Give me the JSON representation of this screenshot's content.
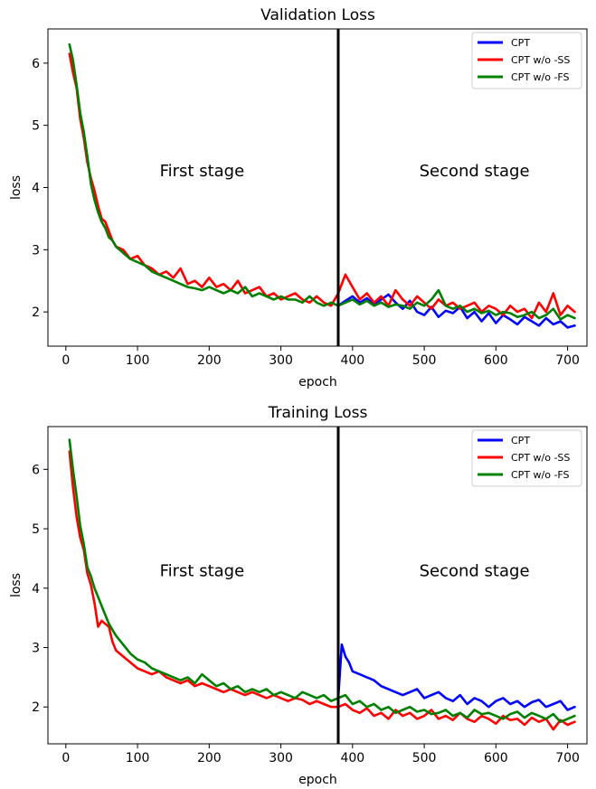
{
  "chart_data": [
    {
      "type": "line",
      "title": "Validation Loss",
      "xlabel": "epoch",
      "ylabel": "loss",
      "xlim": [
        -25,
        727
      ],
      "ylim": [
        1.45,
        6.55
      ],
      "xticks": [
        0,
        100,
        200,
        300,
        400,
        500,
        600,
        700
      ],
      "yticks": [
        2,
        3,
        4,
        5,
        6
      ],
      "grid": false,
      "legend_position": "top-right",
      "vline": 380,
      "annotations": [
        {
          "text": "First stage",
          "x": 190,
          "y": 4.18
        },
        {
          "text": "Second stage",
          "x": 570,
          "y": 4.18
        }
      ],
      "series": [
        {
          "name": "CPT",
          "color": "#0000ff",
          "x": [
            380,
            390,
            400,
            410,
            420,
            430,
            440,
            450,
            460,
            470,
            480,
            490,
            500,
            510,
            520,
            530,
            540,
            550,
            560,
            570,
            580,
            590,
            600,
            610,
            620,
            630,
            640,
            650,
            660,
            670,
            680,
            690,
            700,
            710
          ],
          "y": [
            2.1,
            2.18,
            2.25,
            2.15,
            2.22,
            2.12,
            2.2,
            2.28,
            2.15,
            2.05,
            2.18,
            2.0,
            1.95,
            2.08,
            1.92,
            2.02,
            1.98,
            2.08,
            1.9,
            2.0,
            1.85,
            1.98,
            1.82,
            1.95,
            1.88,
            1.8,
            1.92,
            1.85,
            1.78,
            1.9,
            1.8,
            1.85,
            1.75,
            1.78
          ]
        },
        {
          "name": "CPT w/o -SS",
          "color": "#ff0000",
          "x": [
            5,
            10,
            15,
            20,
            25,
            30,
            35,
            40,
            45,
            50,
            55,
            60,
            65,
            70,
            80,
            90,
            100,
            110,
            120,
            130,
            140,
            150,
            160,
            170,
            180,
            190,
            200,
            210,
            220,
            230,
            240,
            250,
            260,
            270,
            280,
            290,
            300,
            310,
            320,
            330,
            340,
            350,
            360,
            370,
            380,
            390,
            400,
            410,
            420,
            430,
            440,
            450,
            460,
            470,
            480,
            490,
            500,
            510,
            520,
            530,
            540,
            550,
            560,
            570,
            580,
            590,
            600,
            610,
            620,
            630,
            640,
            650,
            660,
            670,
            680,
            690,
            700,
            710
          ],
          "y": [
            6.15,
            5.85,
            5.6,
            5.1,
            4.8,
            4.4,
            4.15,
            3.95,
            3.7,
            3.5,
            3.45,
            3.3,
            3.15,
            3.05,
            3.0,
            2.85,
            2.9,
            2.75,
            2.7,
            2.6,
            2.65,
            2.55,
            2.7,
            2.45,
            2.5,
            2.4,
            2.55,
            2.4,
            2.45,
            2.35,
            2.5,
            2.3,
            2.35,
            2.4,
            2.25,
            2.3,
            2.2,
            2.25,
            2.3,
            2.2,
            2.15,
            2.25,
            2.15,
            2.1,
            2.3,
            2.6,
            2.4,
            2.2,
            2.3,
            2.15,
            2.25,
            2.1,
            2.35,
            2.2,
            2.1,
            2.25,
            2.15,
            2.05,
            2.2,
            2.1,
            2.15,
            2.05,
            2.1,
            2.15,
            2.0,
            2.1,
            2.05,
            1.95,
            2.1,
            2.0,
            2.05,
            1.9,
            2.15,
            2.0,
            2.3,
            1.95,
            2.1,
            2.0
          ]
        },
        {
          "name": "CPT w/o -FS",
          "color": "#008000",
          "x": [
            5,
            10,
            15,
            20,
            25,
            30,
            35,
            40,
            45,
            50,
            55,
            60,
            65,
            70,
            80,
            90,
            100,
            110,
            120,
            130,
            140,
            150,
            160,
            170,
            180,
            190,
            200,
            210,
            220,
            230,
            240,
            250,
            260,
            270,
            280,
            290,
            300,
            310,
            320,
            330,
            340,
            350,
            360,
            370,
            380,
            390,
            400,
            410,
            420,
            430,
            440,
            450,
            460,
            470,
            480,
            490,
            500,
            510,
            520,
            530,
            540,
            550,
            560,
            570,
            580,
            590,
            600,
            610,
            620,
            630,
            640,
            650,
            660,
            670,
            680,
            690,
            700,
            710
          ],
          "y": [
            6.3,
            6.05,
            5.65,
            5.2,
            4.9,
            4.5,
            4.05,
            3.8,
            3.6,
            3.45,
            3.35,
            3.2,
            3.15,
            3.05,
            2.95,
            2.85,
            2.8,
            2.75,
            2.65,
            2.6,
            2.55,
            2.5,
            2.45,
            2.4,
            2.38,
            2.35,
            2.4,
            2.35,
            2.3,
            2.35,
            2.3,
            2.4,
            2.25,
            2.3,
            2.25,
            2.2,
            2.25,
            2.2,
            2.2,
            2.15,
            2.25,
            2.15,
            2.1,
            2.15,
            2.1,
            2.15,
            2.2,
            2.12,
            2.18,
            2.1,
            2.15,
            2.08,
            2.12,
            2.1,
            2.05,
            2.15,
            2.1,
            2.2,
            2.35,
            2.1,
            2.05,
            2.1,
            2.0,
            2.05,
            1.98,
            2.02,
            1.95,
            2.0,
            1.98,
            1.92,
            1.95,
            2.0,
            1.9,
            1.95,
            2.05,
            1.88,
            1.95,
            1.9
          ]
        }
      ]
    },
    {
      "type": "line",
      "title": "Training Loss",
      "xlabel": "epoch",
      "ylabel": "loss",
      "xlim": [
        -25,
        727
      ],
      "ylim": [
        1.38,
        6.72
      ],
      "xticks": [
        0,
        100,
        200,
        300,
        400,
        500,
        600,
        700
      ],
      "yticks": [
        2,
        3,
        4,
        5,
        6
      ],
      "grid": false,
      "legend_position": "top-right",
      "vline": 380,
      "annotations": [
        {
          "text": "First stage",
          "x": 190,
          "y": 4.2
        },
        {
          "text": "Second stage",
          "x": 570,
          "y": 4.2
        }
      ],
      "series": [
        {
          "name": "CPT",
          "color": "#0000ff",
          "x": [
            380,
            385,
            390,
            395,
            400,
            410,
            420,
            430,
            440,
            450,
            460,
            470,
            480,
            490,
            500,
            510,
            520,
            530,
            540,
            550,
            560,
            570,
            580,
            590,
            600,
            610,
            620,
            630,
            640,
            650,
            660,
            670,
            680,
            690,
            700,
            710
          ],
          "y": [
            2.15,
            3.05,
            2.85,
            2.75,
            2.6,
            2.55,
            2.5,
            2.45,
            2.35,
            2.3,
            2.25,
            2.2,
            2.25,
            2.3,
            2.15,
            2.2,
            2.25,
            2.15,
            2.1,
            2.2,
            2.05,
            2.15,
            2.1,
            2.0,
            2.1,
            2.15,
            2.05,
            2.1,
            2.0,
            2.08,
            2.12,
            2.0,
            2.05,
            2.1,
            1.95,
            2.0
          ]
        },
        {
          "name": "CPT w/o -SS",
          "color": "#ff0000",
          "x": [
            5,
            10,
            15,
            20,
            25,
            30,
            35,
            40,
            45,
            50,
            55,
            60,
            65,
            70,
            80,
            90,
            100,
            110,
            120,
            130,
            140,
            150,
            160,
            170,
            180,
            190,
            200,
            210,
            220,
            230,
            240,
            250,
            260,
            270,
            280,
            290,
            300,
            310,
            320,
            330,
            340,
            350,
            360,
            370,
            380,
            390,
            400,
            410,
            420,
            430,
            440,
            450,
            460,
            470,
            480,
            490,
            500,
            510,
            520,
            530,
            540,
            550,
            560,
            570,
            580,
            590,
            600,
            610,
            620,
            630,
            640,
            650,
            660,
            670,
            680,
            690,
            700,
            710
          ],
          "y": [
            6.3,
            5.7,
            5.2,
            4.85,
            4.65,
            4.25,
            4.05,
            3.75,
            3.35,
            3.45,
            3.4,
            3.35,
            3.1,
            2.95,
            2.85,
            2.75,
            2.65,
            2.6,
            2.55,
            2.6,
            2.5,
            2.45,
            2.4,
            2.45,
            2.35,
            2.4,
            2.35,
            2.3,
            2.25,
            2.3,
            2.25,
            2.2,
            2.25,
            2.2,
            2.15,
            2.2,
            2.15,
            2.1,
            2.15,
            2.12,
            2.05,
            2.1,
            2.05,
            2.0,
            2.0,
            2.05,
            1.95,
            1.9,
            1.98,
            1.85,
            1.9,
            1.8,
            1.95,
            1.85,
            1.9,
            1.8,
            1.85,
            1.95,
            1.8,
            1.85,
            1.78,
            1.9,
            1.8,
            1.75,
            1.85,
            1.8,
            1.72,
            1.85,
            1.78,
            1.8,
            1.7,
            1.82,
            1.75,
            1.8,
            1.62,
            1.78,
            1.7,
            1.75
          ]
        },
        {
          "name": "CPT w/o -FS",
          "color": "#008000",
          "x": [
            5,
            10,
            15,
            20,
            25,
            30,
            35,
            40,
            45,
            50,
            55,
            60,
            65,
            70,
            80,
            90,
            100,
            110,
            120,
            130,
            140,
            150,
            160,
            170,
            180,
            190,
            200,
            210,
            220,
            230,
            240,
            250,
            260,
            270,
            280,
            290,
            300,
            310,
            320,
            330,
            340,
            350,
            360,
            370,
            380,
            390,
            400,
            410,
            420,
            430,
            440,
            450,
            460,
            470,
            480,
            490,
            500,
            510,
            520,
            530,
            540,
            550,
            560,
            570,
            580,
            590,
            600,
            610,
            620,
            630,
            640,
            650,
            660,
            670,
            680,
            690,
            700,
            710
          ],
          "y": [
            6.5,
            6.0,
            5.55,
            5.05,
            4.75,
            4.35,
            4.2,
            4.0,
            3.85,
            3.7,
            3.55,
            3.4,
            3.3,
            3.2,
            3.05,
            2.9,
            2.8,
            2.75,
            2.65,
            2.6,
            2.55,
            2.5,
            2.45,
            2.5,
            2.4,
            2.55,
            2.45,
            2.35,
            2.4,
            2.3,
            2.35,
            2.25,
            2.3,
            2.25,
            2.3,
            2.2,
            2.25,
            2.2,
            2.15,
            2.25,
            2.2,
            2.15,
            2.2,
            2.1,
            2.15,
            2.2,
            2.05,
            2.1,
            2.0,
            2.05,
            1.95,
            2.0,
            1.9,
            1.95,
            2.0,
            1.92,
            1.95,
            1.88,
            1.9,
            1.95,
            1.85,
            1.9,
            1.82,
            1.95,
            1.88,
            1.9,
            1.85,
            1.8,
            1.88,
            1.92,
            1.82,
            1.9,
            1.85,
            1.8,
            1.88,
            1.75,
            1.8,
            1.85
          ]
        }
      ]
    }
  ]
}
